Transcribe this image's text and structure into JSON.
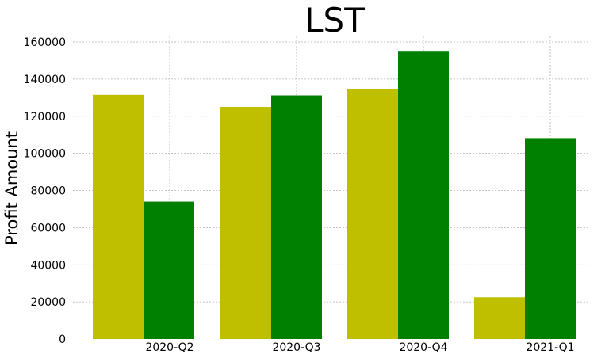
{
  "chart_data": {
    "type": "bar",
    "title": "LST",
    "xlabel": "",
    "ylabel": "Profit Amount",
    "categories": [
      "2020-Q2",
      "2020-Q3",
      "2020-Q4",
      "2021-Q1"
    ],
    "series": [
      {
        "color": "#bfbf00",
        "values": [
          131500,
          125000,
          134800,
          22500
        ]
      },
      {
        "color": "#008000",
        "values": [
          74000,
          131200,
          154800,
          108200
        ]
      }
    ],
    "ylim": [
      0,
      162000
    ],
    "yticks": [
      0,
      20000,
      40000,
      60000,
      80000,
      100000,
      120000,
      140000,
      160000
    ],
    "grid": true,
    "legend": "none"
  }
}
